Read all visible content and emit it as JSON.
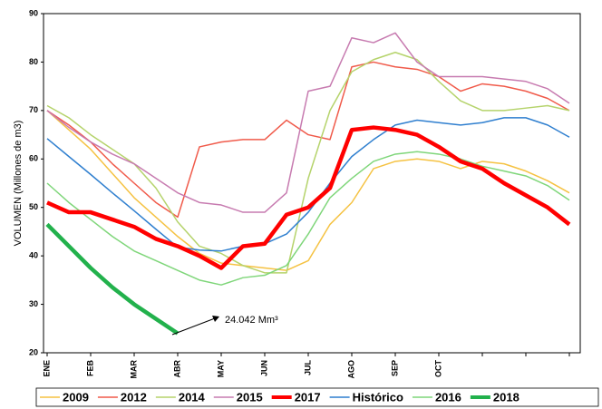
{
  "chart_data": {
    "type": "line",
    "y_label": "VOLUMEN (Millones de m3)",
    "annotation": "24.042 Mm³",
    "categories": [
      "ENE",
      null,
      "FEB",
      null,
      "MAR",
      null,
      "ABR",
      null,
      "MAY",
      null,
      "JUN",
      null,
      "JUL",
      null,
      "AGO",
      null,
      "SEP",
      null,
      "OCT",
      null,
      null,
      null,
      null,
      null,
      null
    ],
    "ylim": [
      20,
      90
    ],
    "yticks": [
      20,
      30,
      40,
      50,
      60,
      70,
      80,
      90
    ],
    "grid": false,
    "series": [
      {
        "name": "2009",
        "color": "#f5c242",
        "values": [
          70,
          66,
          62,
          57,
          52,
          48,
          44,
          40.5,
          38.5,
          38,
          37.5,
          37,
          39,
          46.5,
          51,
          58,
          59.5,
          60,
          59.5,
          58,
          59.5,
          59,
          57.5,
          55.5,
          53
        ]
      },
      {
        "name": "2012",
        "color": "#f05a4a",
        "values": [
          70,
          67,
          63.5,
          59,
          55,
          51,
          48,
          62.5,
          63.5,
          64,
          64,
          68,
          65,
          64,
          79,
          80,
          79,
          78.5,
          77,
          74,
          75.5,
          75,
          74,
          72.5,
          70
        ]
      },
      {
        "name": "2014",
        "color": "#b5d36b",
        "values": [
          71,
          68.5,
          65,
          62,
          59,
          54,
          47,
          42,
          40.5,
          38,
          36.5,
          36.5,
          56,
          70,
          78,
          80.5,
          82,
          80.5,
          76,
          72,
          70,
          70,
          70.5,
          71,
          70
        ]
      },
      {
        "name": "2015",
        "color": "#c77bb0",
        "values": [
          70,
          66.5,
          63.5,
          61,
          59,
          56,
          53,
          51,
          50.5,
          49,
          49,
          53,
          74,
          75,
          85,
          84,
          86,
          80,
          77,
          77,
          77,
          76.5,
          76,
          74.5,
          71.5
        ]
      },
      {
        "name": "2017",
        "color": "#ff0000",
        "values": [
          51,
          49,
          49,
          47.5,
          46,
          43.5,
          42,
          40,
          37.5,
          42,
          42.5,
          48.5,
          50,
          54,
          66,
          66.5,
          66,
          65,
          62.5,
          59.5,
          58,
          55,
          52.5,
          50,
          46.5
        ]
      },
      {
        "name": "Histórico",
        "color": "#2f7fcf",
        "values": [
          64.2,
          60.5,
          56.8,
          53,
          49.3,
          45.5,
          41.8,
          41.2,
          41,
          42,
          42.5,
          44.5,
          49,
          55,
          60.5,
          64,
          67,
          68,
          67.5,
          67,
          67.5,
          68.5,
          68.5,
          67,
          64.5
        ]
      },
      {
        "name": "2016",
        "color": "#7fd67a",
        "values": [
          55,
          51,
          47.5,
          44,
          41,
          39,
          37,
          35,
          34,
          35.5,
          36,
          38,
          44.5,
          52,
          56,
          59.5,
          61,
          61.5,
          61,
          60,
          58.5,
          57.5,
          56.5,
          54.5,
          51.5
        ]
      },
      {
        "name": "2018",
        "color": "#22b14c",
        "values": [
          46.5,
          42,
          37.5,
          33.5,
          30,
          27,
          24,
          null,
          null,
          null,
          null,
          null,
          null,
          null,
          null,
          null,
          null,
          null,
          null,
          null,
          null,
          null,
          null,
          null,
          null
        ]
      }
    ]
  }
}
